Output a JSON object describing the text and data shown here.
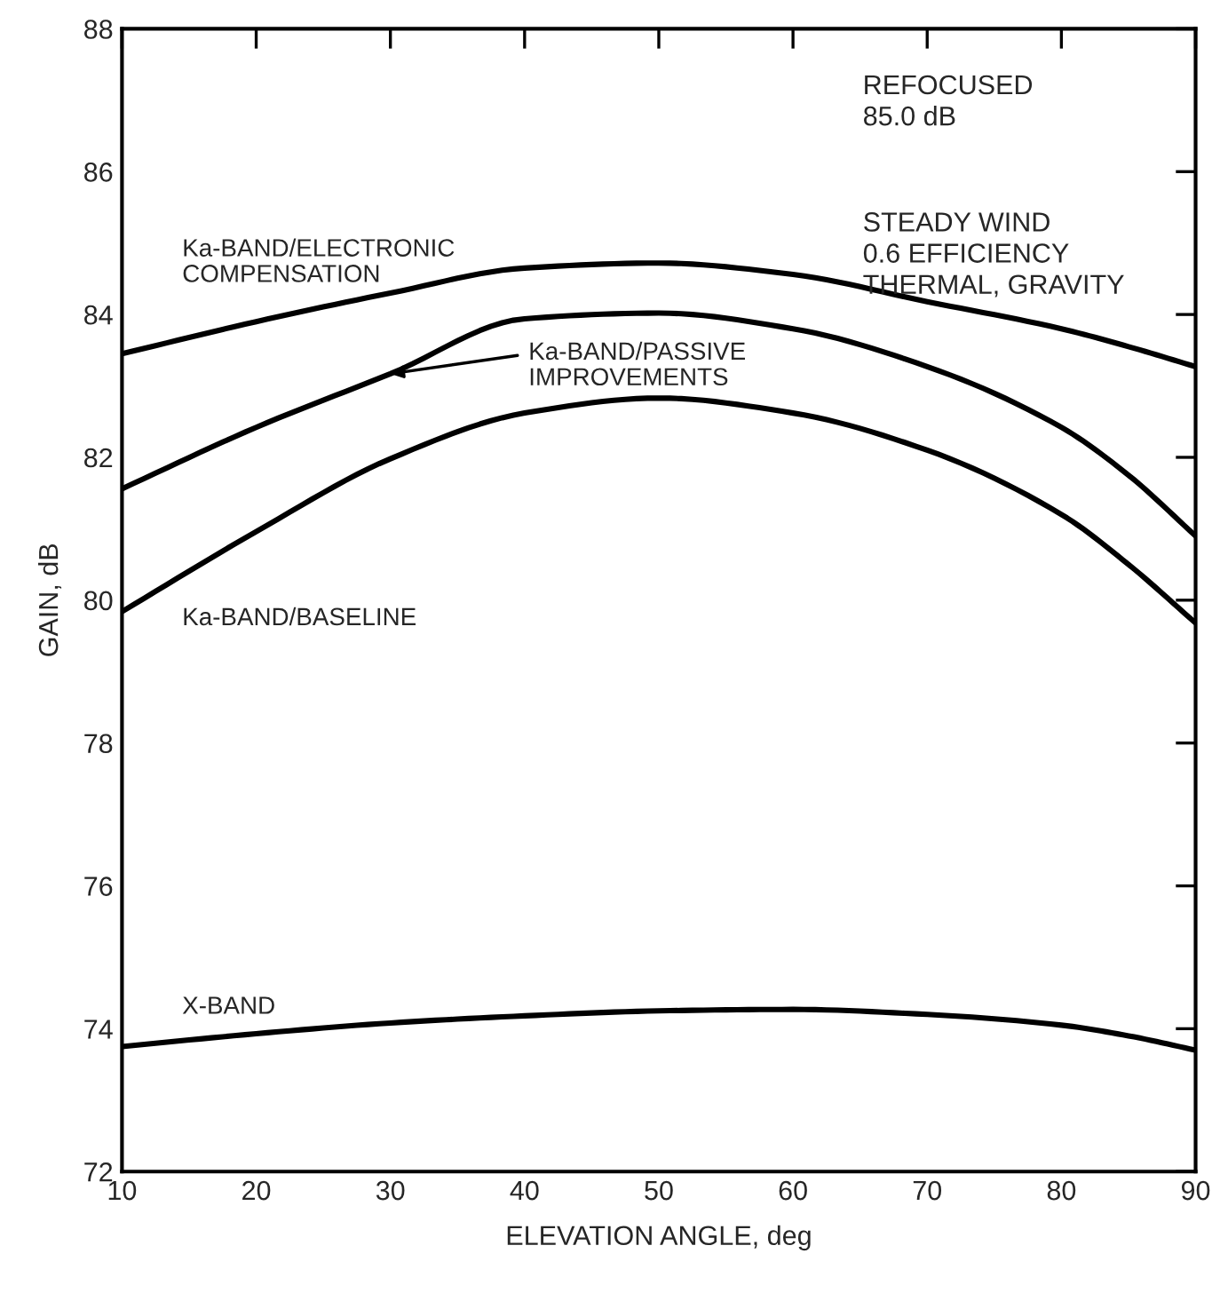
{
  "chart_data": {
    "type": "line",
    "xlabel": "ELEVATION ANGLE, deg",
    "ylabel": "GAIN, dB",
    "x": [
      10,
      20,
      30,
      40,
      50,
      60,
      70,
      80,
      85,
      90
    ],
    "series": [
      {
        "name": "Ka-BAND/ELECTRONIC\nCOMPENSATION",
        "color": "#000000",
        "values": [
          83.45,
          83.9,
          84.3,
          84.65,
          84.72,
          84.56,
          84.18,
          83.8,
          83.55,
          83.27
        ]
      },
      {
        "name": "Ka-BAND/PASSIVE\nIMPROVEMENTS",
        "color": "#000000",
        "values": [
          81.56,
          82.42,
          83.17,
          83.94,
          84.02,
          83.8,
          83.27,
          82.42,
          81.75,
          80.9
        ]
      },
      {
        "name": "Ka-BAND/BASELINE",
        "color": "#000000",
        "values": [
          79.84,
          80.96,
          81.98,
          82.62,
          82.83,
          82.62,
          82.1,
          81.2,
          80.5,
          79.68
        ]
      },
      {
        "name": "X-BAND",
        "color": "#000000",
        "values": [
          73.75,
          73.93,
          74.08,
          74.18,
          74.25,
          74.27,
          74.2,
          74.05,
          73.9,
          73.7
        ]
      }
    ],
    "annotations": [
      "REFOCUSED\n85.0 dB",
      "STEADY WIND\n0.6 EFFICIENCY\nTHERMAL, GRAVITY"
    ],
    "xlim": [
      10,
      90
    ],
    "xticks": [
      10,
      20,
      30,
      40,
      50,
      60,
      70,
      80,
      90
    ],
    "ylim": [
      72,
      88
    ],
    "yticks": [
      72,
      74,
      76,
      78,
      80,
      82,
      84,
      86,
      88
    ],
    "grid": false,
    "legend": false,
    "marker": "none",
    "line_style": "solid"
  }
}
